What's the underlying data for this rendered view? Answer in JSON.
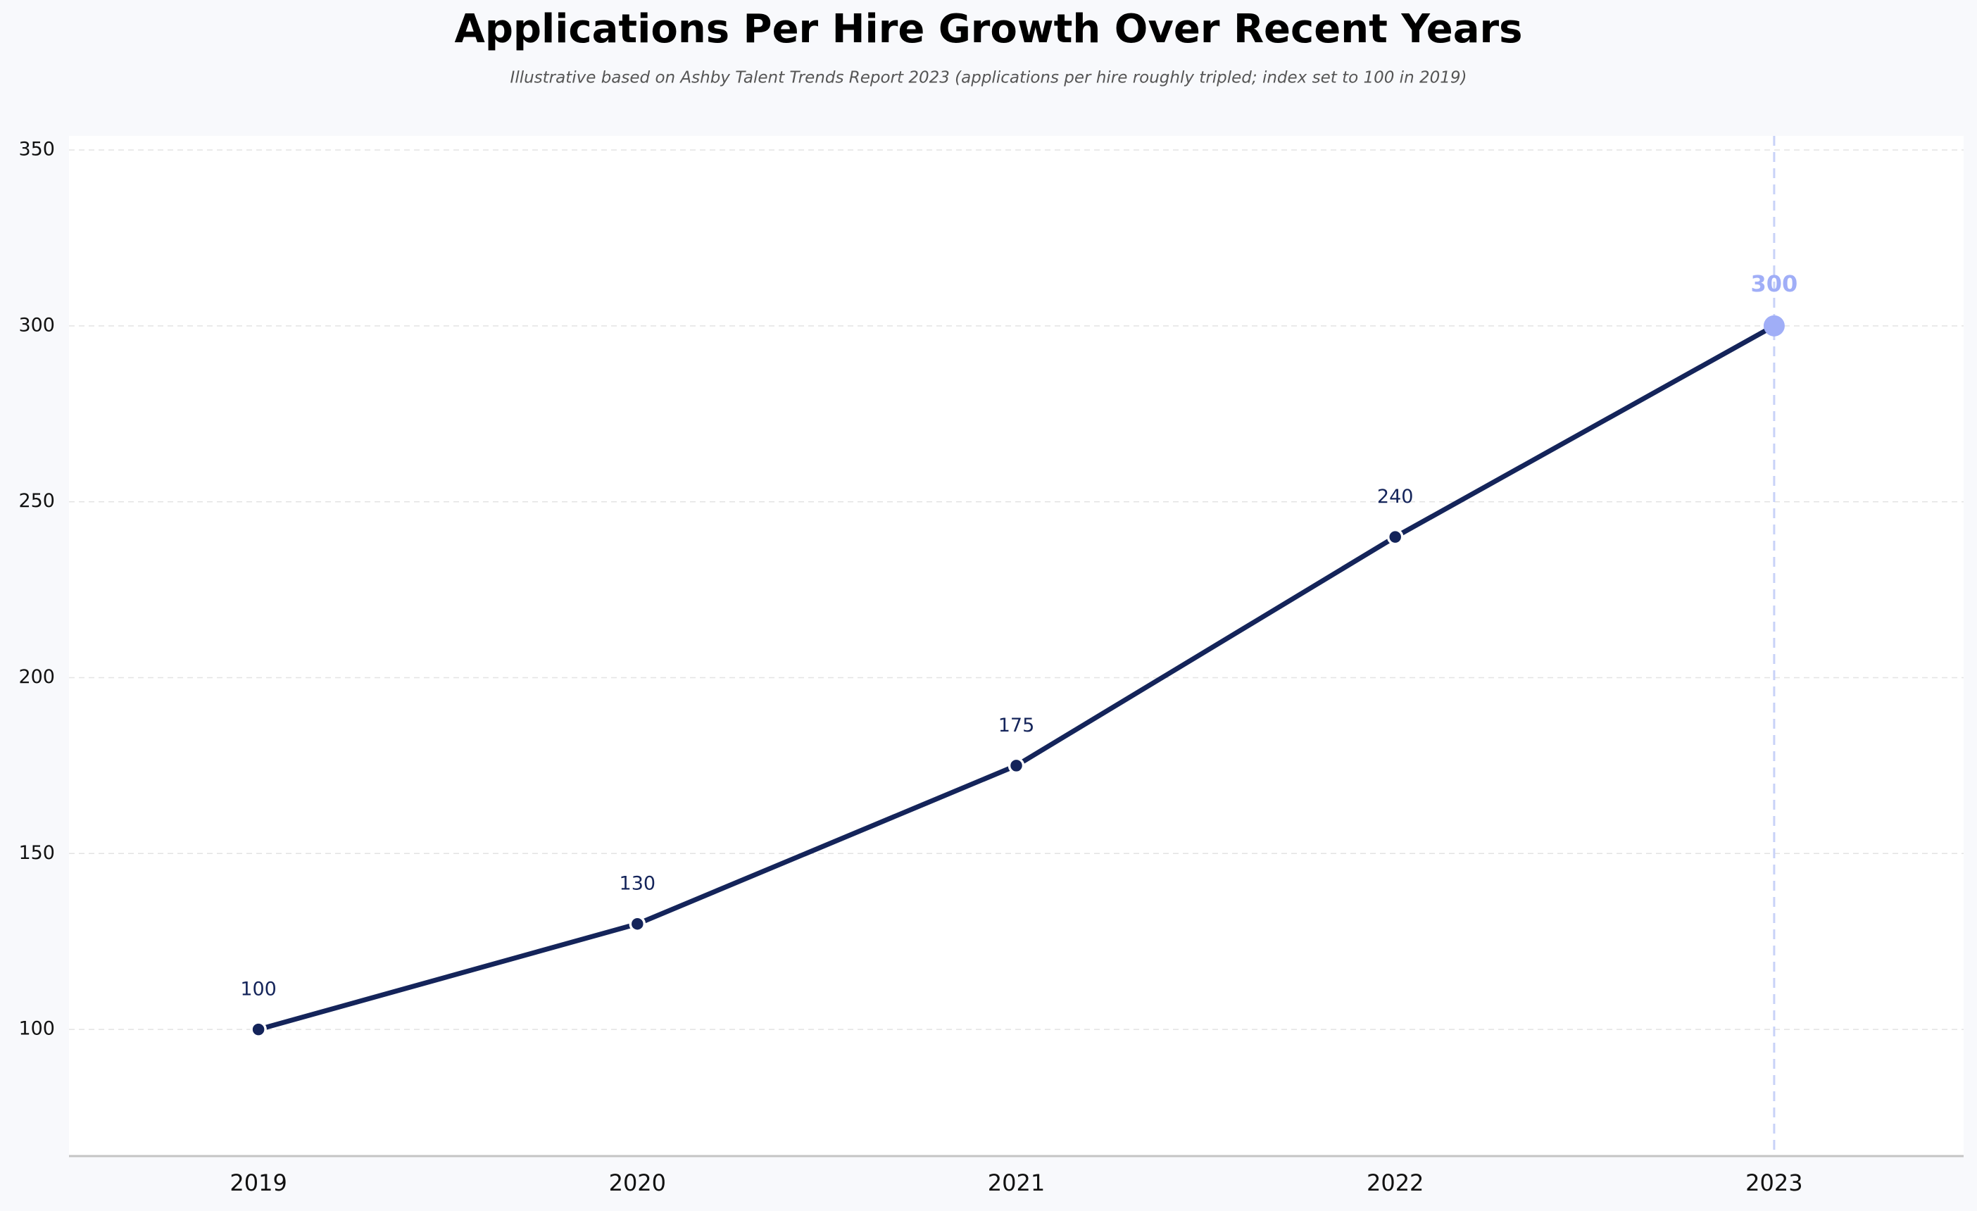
{
  "chart_data": {
    "type": "line",
    "title": "Applications Per Hire Growth Over Recent Years",
    "subtitle": "Illustrative based on Ashby Talent Trends Report 2023 (applications per hire roughly tripled; index set to 100 in 2019)",
    "categories": [
      "2019",
      "2020",
      "2021",
      "2022",
      "2023"
    ],
    "values": [
      100,
      130,
      175,
      240,
      300
    ],
    "color": "#14245a",
    "highlight": {
      "index": 4,
      "color": "#a0aef7",
      "line_color": "#c8d2f8"
    },
    "ylim": [
      64,
      354
    ],
    "yticks": [
      100,
      150,
      200,
      250,
      300,
      350
    ],
    "grid": true
  }
}
